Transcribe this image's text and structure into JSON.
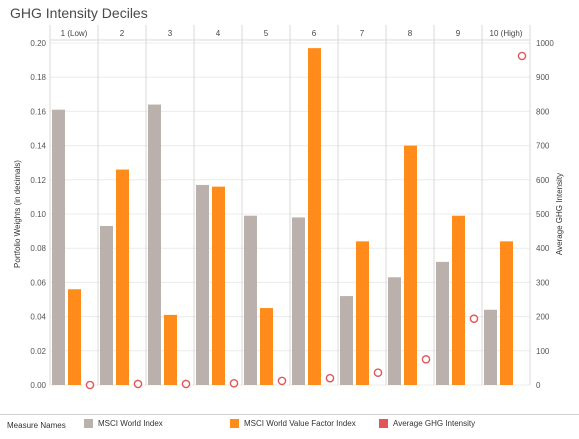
{
  "chart_data": {
    "type": "bar",
    "title": "GHG Intensity Deciles",
    "categories": [
      "1 (Low)",
      "2",
      "3",
      "4",
      "5",
      "6",
      "7",
      "8",
      "9",
      "10 (High)"
    ],
    "series": [
      {
        "name": "MSCI World Index",
        "values": [
          0.161,
          0.093,
          0.164,
          0.117,
          0.099,
          0.098,
          0.052,
          0.063,
          0.072,
          0.044
        ],
        "color": "#bab0ac"
      },
      {
        "name": "MSCI World Value Factor Index",
        "values": [
          0.056,
          0.126,
          0.041,
          0.116,
          0.045,
          0.197,
          0.084,
          0.14,
          0.099,
          0.084
        ],
        "color": "#ff8c1a"
      }
    ],
    "secondary_series": {
      "name": "Average GHG Intensity",
      "values": [
        0,
        3,
        3,
        5,
        12,
        20,
        36,
        75,
        194,
        962
      ],
      "color": "#e15759",
      "marker": "circle"
    },
    "ylabel": "Portfolio Weights (in decimals)",
    "y2label": "Average GHG Intensity",
    "ylim": [
      0,
      0.2
    ],
    "y2lim": [
      0,
      1000
    ],
    "yticks": [
      "0.00",
      "0.02",
      "0.04",
      "0.06",
      "0.08",
      "0.10",
      "0.12",
      "0.14",
      "0.16",
      "0.18",
      "0.20"
    ],
    "y2ticks": [
      "0",
      "100",
      "200",
      "300",
      "400",
      "500",
      "600",
      "700",
      "800",
      "900",
      "1000"
    ],
    "grid": true,
    "legend": {
      "title": "Measure Names",
      "position": "bottom"
    }
  }
}
